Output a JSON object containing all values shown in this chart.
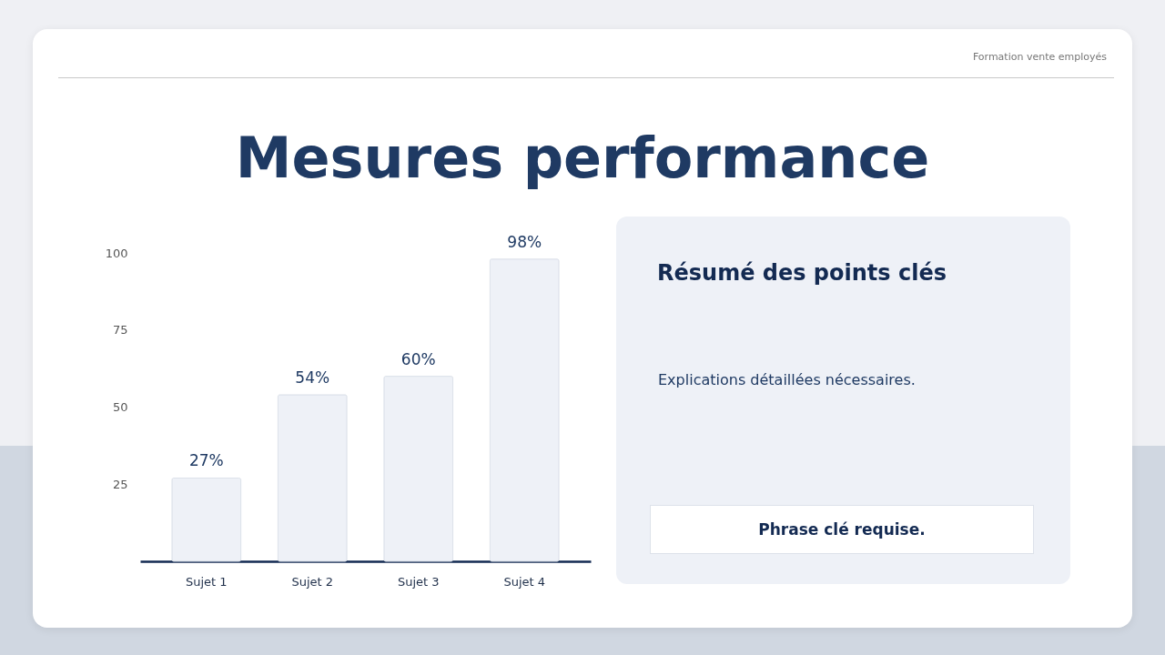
{
  "chart_data": [
    {
      "type": "bar",
      "title": "Mesures performance",
      "annotations": [
        "Formation vente employés"
      ],
      "categories": [
        "Sujet 1",
        "Sujet 2",
        "Sujet 3",
        "Sujet 4"
      ],
      "values": [
        27,
        54,
        60,
        98
      ],
      "value_labels": [
        "27%",
        "54%",
        "60%",
        "98%"
      ],
      "color": "#eef1f7",
      "ylim": [
        0,
        100
      ],
      "yticks": [
        25,
        50,
        75,
        100
      ]
    },
    {
      "type": "other",
      "title": "Résumé des points clés",
      "annotations": [
        "Explications détaillées nécessaires.",
        "Phrase clé requise."
      ]
    }
  ]
}
